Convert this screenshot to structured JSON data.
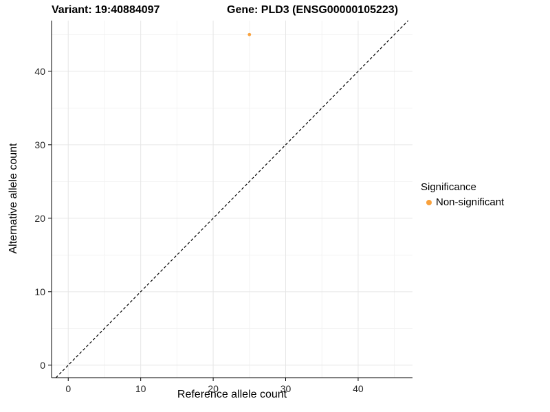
{
  "titles": {
    "left": "Variant: 19:40884097",
    "right": "Gene: PLD3 (ENSG00000105223)"
  },
  "chart_data": {
    "type": "scatter",
    "xlabel": "Reference allele count",
    "ylabel": "Alternative allele count",
    "xlim": [
      -2.3,
      47.5
    ],
    "ylim": [
      -1.7,
      46.9
    ],
    "xticks": [
      0,
      10,
      20,
      30,
      40
    ],
    "yticks": [
      0,
      10,
      20,
      30,
      40
    ],
    "xminor": [
      5,
      15,
      25,
      35,
      45
    ],
    "yminor": [
      5,
      15,
      25,
      35,
      45
    ],
    "grid": true,
    "background": "#ffffff",
    "grid_major_color": "#e6e6e6",
    "grid_minor_color": "#f2f2f2",
    "axis_color": "#000000",
    "reference_line": {
      "style": "dashed",
      "equation": "y = x",
      "color": "#000000"
    },
    "series": [
      {
        "name": "Non-significant",
        "color": "#F9A13C",
        "points": [
          {
            "x": 25,
            "y": 45
          }
        ]
      }
    ],
    "legend": {
      "title": "Significance",
      "position": "right",
      "items": [
        {
          "label": "Non-significant",
          "color": "#F9A13C"
        }
      ]
    }
  }
}
